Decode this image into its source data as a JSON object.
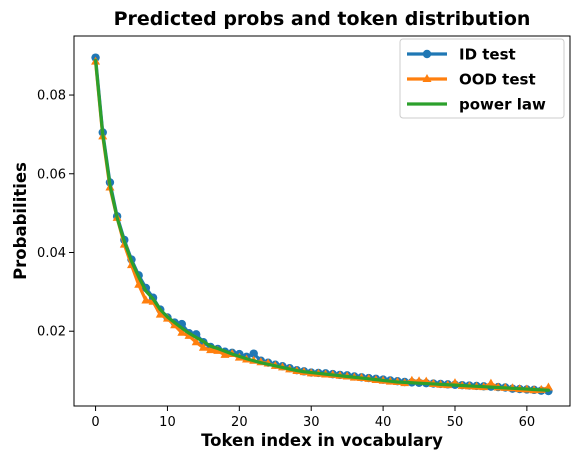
{
  "chart_data": {
    "type": "line",
    "title": "Predicted probs and token distribution",
    "xlabel": "Token index in vocabulary",
    "ylabel": "Probabilities",
    "xlim": [
      -3,
      66
    ],
    "ylim": [
      0.001,
      0.095
    ],
    "xticks": [
      0,
      10,
      20,
      30,
      40,
      50,
      60
    ],
    "yticks": [
      0.02,
      0.04,
      0.06,
      0.08
    ],
    "grid": false,
    "legend_position": "top-right",
    "x": [
      0,
      1,
      2,
      3,
      4,
      5,
      6,
      7,
      8,
      9,
      10,
      11,
      12,
      13,
      14,
      15,
      16,
      17,
      18,
      19,
      20,
      21,
      22,
      23,
      24,
      25,
      26,
      27,
      28,
      29,
      30,
      31,
      32,
      33,
      34,
      35,
      36,
      37,
      38,
      39,
      40,
      41,
      42,
      43,
      44,
      45,
      46,
      47,
      48,
      49,
      50,
      51,
      52,
      53,
      54,
      55,
      56,
      57,
      58,
      59,
      60,
      61,
      62,
      63
    ],
    "series": [
      {
        "name": "ID test",
        "color": "#1f77b4",
        "marker": "circle",
        "values": [
          0.0895,
          0.0705,
          0.0578,
          0.0492,
          0.0432,
          0.0382,
          0.0342,
          0.031,
          0.0285,
          0.0255,
          0.0235,
          0.0222,
          0.0218,
          0.0195,
          0.0192,
          0.0172,
          0.016,
          0.0155,
          0.0148,
          0.0145,
          0.0142,
          0.0135,
          0.0143,
          0.0125,
          0.012,
          0.0115,
          0.0111,
          0.0106,
          0.0101,
          0.0098,
          0.0095,
          0.0094,
          0.0093,
          0.0091,
          0.0089,
          0.0088,
          0.0085,
          0.0083,
          0.0081,
          0.0079,
          0.0077,
          0.0075,
          0.0073,
          0.0071,
          0.007,
          0.0069,
          0.0068,
          0.0067,
          0.0066,
          0.0065,
          0.0064,
          0.0063,
          0.0062,
          0.0061,
          0.006,
          0.0059,
          0.0058,
          0.0057,
          0.0054,
          0.0053,
          0.0052,
          0.0051,
          0.0049,
          0.0048
        ]
      },
      {
        "name": "OOD test",
        "color": "#ff7f0e",
        "marker": "triangle",
        "values": [
          0.0885,
          0.0695,
          0.0565,
          0.0488,
          0.042,
          0.0368,
          0.0318,
          0.0278,
          0.0275,
          0.0242,
          0.0232,
          0.0215,
          0.0196,
          0.0188,
          0.0172,
          0.0158,
          0.0152,
          0.015,
          0.014,
          0.0142,
          0.0133,
          0.0128,
          0.0125,
          0.0121,
          0.0118,
          0.0112,
          0.0108,
          0.0103,
          0.0099,
          0.0096,
          0.0093,
          0.0092,
          0.009,
          0.0089,
          0.0087,
          0.0085,
          0.0082,
          0.0081,
          0.0079,
          0.0076,
          0.0074,
          0.0072,
          0.0071,
          0.0068,
          0.0074,
          0.0073,
          0.0072,
          0.0066,
          0.0064,
          0.0063,
          0.0068,
          0.0061,
          0.006,
          0.0059,
          0.0058,
          0.0067,
          0.0057,
          0.0056,
          0.0055,
          0.0053,
          0.0052,
          0.005,
          0.0051,
          0.0057
        ]
      },
      {
        "name": "power law",
        "color": "#2ca02c",
        "marker": "none",
        "values": [
          0.0888,
          0.07,
          0.0572,
          0.0488,
          0.0428,
          0.0378,
          0.0338,
          0.0302,
          0.0282,
          0.0255,
          0.0236,
          0.0222,
          0.0208,
          0.0195,
          0.0184,
          0.0174,
          0.0162,
          0.0156,
          0.0149,
          0.0142,
          0.0136,
          0.013,
          0.0125,
          0.012,
          0.0116,
          0.0112,
          0.0108,
          0.0104,
          0.01,
          0.0097,
          0.0095,
          0.0093,
          0.0091,
          0.0089,
          0.0087,
          0.0085,
          0.0083,
          0.0081,
          0.0079,
          0.0077,
          0.0075,
          0.0073,
          0.0071,
          0.007,
          0.0069,
          0.0068,
          0.0067,
          0.0066,
          0.0065,
          0.0064,
          0.0063,
          0.0062,
          0.0061,
          0.006,
          0.0059,
          0.0058,
          0.0057,
          0.0056,
          0.0055,
          0.0054,
          0.0053,
          0.0052,
          0.0051,
          0.005
        ]
      }
    ]
  }
}
